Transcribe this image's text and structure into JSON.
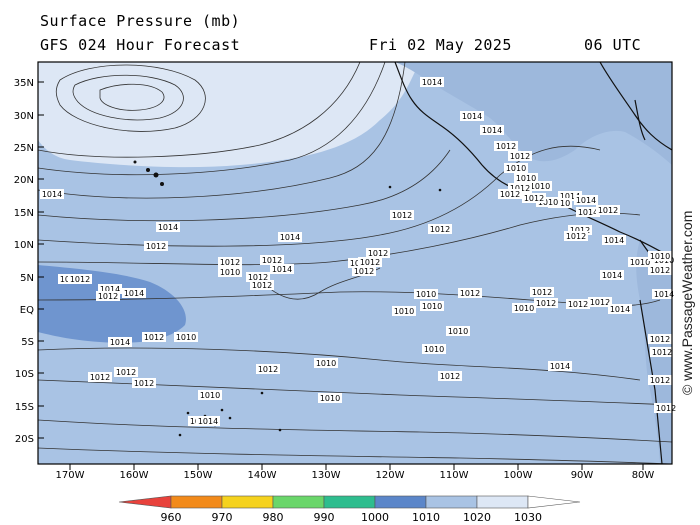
{
  "header": {
    "title": "Surface Pressure (mb)",
    "subtitle": "GFS 024 Hour Forecast",
    "date": "Fri 02 May 2025",
    "time": "06 UTC"
  },
  "axes": {
    "lat_labels": [
      "35N",
      "30N",
      "25N",
      "20N",
      "15N",
      "10N",
      "5N",
      "EQ",
      "5S",
      "10S",
      "15S",
      "20S"
    ],
    "lon_labels": [
      "170W",
      "160W",
      "150W",
      "140W",
      "130W",
      "120W",
      "110W",
      "100W",
      "90W",
      "80W"
    ]
  },
  "isobar_labels": [
    {
      "t": "1014"
    },
    {
      "t": "1014"
    },
    {
      "t": "1012"
    },
    {
      "t": "1012"
    },
    {
      "t": "1014"
    },
    {
      "t": "1012"
    },
    {
      "t": "1012"
    },
    {
      "t": "1012"
    },
    {
      "t": "1010"
    },
    {
      "t": "1010"
    },
    {
      "t": "1012"
    },
    {
      "t": "1014"
    },
    {
      "t": "1012"
    },
    {
      "t": "1012"
    },
    {
      "t": "1012"
    },
    {
      "t": "1012"
    },
    {
      "t": "1010"
    },
    {
      "t": "1012"
    },
    {
      "t": "1014"
    },
    {
      "t": "1012"
    },
    {
      "t": "1014"
    },
    {
      "t": "1014"
    },
    {
      "t": "1012"
    },
    {
      "t": "1010"
    },
    {
      "t": "1012"
    },
    {
      "t": "1012"
    },
    {
      "t": "1012"
    },
    {
      "t": "1010"
    },
    {
      "t": "1014"
    },
    {
      "t": "1014"
    },
    {
      "t": "1012"
    },
    {
      "t": "1010"
    },
    {
      "t": "1010"
    },
    {
      "t": "1010"
    },
    {
      "t": "1010"
    },
    {
      "t": "1010"
    },
    {
      "t": "1010"
    },
    {
      "t": "1010"
    },
    {
      "t": "1012"
    },
    {
      "t": "1012"
    },
    {
      "t": "1012"
    },
    {
      "t": "1010"
    },
    {
      "t": "1012"
    },
    {
      "t": "1012"
    },
    {
      "t": "1014"
    },
    {
      "t": "1012"
    },
    {
      "t": "1014"
    },
    {
      "t": "1012"
    },
    {
      "t": "1012"
    },
    {
      "t": "1014"
    },
    {
      "t": "1014"
    },
    {
      "t": "1012"
    },
    {
      "t": "1010"
    },
    {
      "t": "1010"
    },
    {
      "t": "1010"
    },
    {
      "t": "1012"
    },
    {
      "t": "1012"
    },
    {
      "t": "1014"
    },
    {
      "t": "1012"
    },
    {
      "t": "1012"
    },
    {
      "t": "1014"
    },
    {
      "t": "1014"
    },
    {
      "t": "1014"
    },
    {
      "t": "1012"
    },
    {
      "t": "1010"
    },
    {
      "t": "1010"
    },
    {
      "t": "1012"
    },
    {
      "t": "1010"
    },
    {
      "t": "1010"
    },
    {
      "t": "1012"
    },
    {
      "t": "1012"
    },
    {
      "t": "1010"
    },
    {
      "t": "1012"
    },
    {
      "t": "1012"
    },
    {
      "t": "1014"
    },
    {
      "t": "1014"
    },
    {
      "t": "1014"
    }
  ],
  "colorbar": {
    "labels": [
      "960",
      "970",
      "980",
      "990",
      "1000",
      "1010",
      "1020",
      "1030"
    ],
    "colors": [
      "#e8423c",
      "#f28a1a",
      "#f5d21e",
      "#6ad66a",
      "#2ebd8e",
      "#5b86c9",
      "#a9c3e4",
      "#dde7f5"
    ]
  },
  "map_colors": {
    "sea_1010_1020": "#a9c3e4",
    "sea_1000_1010": "#6f95cf",
    "high_1020_1030": "#dde7f5",
    "land": "#9db8dc"
  },
  "watermark": "© www.PassageWeather.com"
}
